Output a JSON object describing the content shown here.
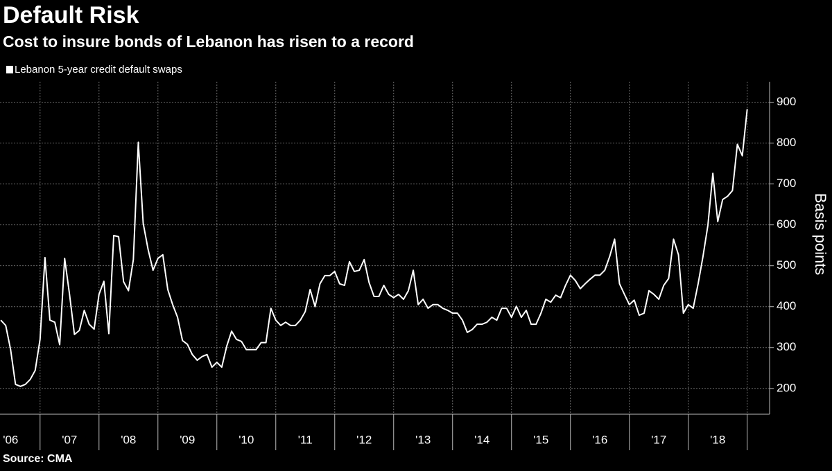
{
  "chart_data": {
    "type": "line",
    "title": "Default Risk",
    "subtitle": "Cost to insure bonds of Lebanon has risen to a record",
    "y_axis_label": "Basis points",
    "source": "Source: CMA",
    "grid": true,
    "y_axis_side": "right",
    "xlim": [
      2006.32,
      2019.38
    ],
    "ylim": [
      137,
      950
    ],
    "yticks": [
      200,
      300,
      400,
      500,
      600,
      700,
      800,
      900
    ],
    "xticks": [
      {
        "value": 2006.5,
        "label": "'06"
      },
      {
        "value": 2007.5,
        "label": "'07"
      },
      {
        "value": 2008.5,
        "label": "'08"
      },
      {
        "value": 2009.5,
        "label": "'09"
      },
      {
        "value": 2010.5,
        "label": "'10"
      },
      {
        "value": 2011.5,
        "label": "'11"
      },
      {
        "value": 2012.5,
        "label": "'12"
      },
      {
        "value": 2013.5,
        "label": "'13"
      },
      {
        "value": 2014.5,
        "label": "'14"
      },
      {
        "value": 2015.5,
        "label": "'15"
      },
      {
        "value": 2016.5,
        "label": "'16"
      },
      {
        "value": 2017.5,
        "label": "'17"
      },
      {
        "value": 2018.5,
        "label": "'18"
      }
    ],
    "x_grid": [
      2007,
      2008,
      2009,
      2010,
      2011,
      2012,
      2013,
      2014,
      2015,
      2016,
      2017,
      2018,
      2019
    ],
    "x": [
      2006.333,
      2006.417,
      2006.5,
      2006.583,
      2006.667,
      2006.75,
      2006.833,
      2006.917,
      2007.0,
      2007.083,
      2007.167,
      2007.25,
      2007.333,
      2007.417,
      2007.5,
      2007.583,
      2007.667,
      2007.75,
      2007.833,
      2007.917,
      2008.0,
      2008.083,
      2008.167,
      2008.25,
      2008.333,
      2008.417,
      2008.5,
      2008.583,
      2008.667,
      2008.75,
      2008.833,
      2008.917,
      2009.0,
      2009.083,
      2009.167,
      2009.25,
      2009.333,
      2009.417,
      2009.5,
      2009.583,
      2009.667,
      2009.75,
      2009.833,
      2009.917,
      2010.0,
      2010.083,
      2010.167,
      2010.25,
      2010.333,
      2010.417,
      2010.5,
      2010.583,
      2010.667,
      2010.75,
      2010.833,
      2010.917,
      2011.0,
      2011.083,
      2011.167,
      2011.25,
      2011.333,
      2011.417,
      2011.5,
      2011.583,
      2011.667,
      2011.75,
      2011.833,
      2011.917,
      2012.0,
      2012.083,
      2012.167,
      2012.25,
      2012.333,
      2012.417,
      2012.5,
      2012.583,
      2012.667,
      2012.75,
      2012.833,
      2012.917,
      2013.0,
      2013.083,
      2013.167,
      2013.25,
      2013.333,
      2013.417,
      2013.5,
      2013.583,
      2013.667,
      2013.75,
      2013.833,
      2013.917,
      2014.0,
      2014.083,
      2014.167,
      2014.25,
      2014.333,
      2014.417,
      2014.5,
      2014.583,
      2014.667,
      2014.75,
      2014.833,
      2014.917,
      2015.0,
      2015.083,
      2015.167,
      2015.25,
      2015.333,
      2015.417,
      2015.5,
      2015.583,
      2015.667,
      2015.75,
      2015.833,
      2015.917,
      2016.0,
      2016.083,
      2016.167,
      2016.25,
      2016.333,
      2016.417,
      2016.5,
      2016.583,
      2016.667,
      2016.75,
      2016.833,
      2016.917,
      2017.0,
      2017.083,
      2017.167,
      2017.25,
      2017.333,
      2017.417,
      2017.5,
      2017.583,
      2017.667,
      2017.75,
      2017.833,
      2017.917,
      2018.0,
      2018.083,
      2018.167,
      2018.25,
      2018.333,
      2018.417,
      2018.5,
      2018.583,
      2018.667,
      2018.75,
      2018.833,
      2018.917,
      2019.0
    ],
    "series": [
      {
        "name": "Lebanon 5-year credit default swaps",
        "color": "#ffffff",
        "values": [
          367,
          354,
          295,
          210,
          205,
          210,
          222,
          244,
          320,
          520,
          367,
          362,
          307,
          518,
          430,
          332,
          342,
          391,
          357,
          345,
          430,
          462,
          334,
          574,
          571,
          461,
          439,
          515,
          802,
          604,
          540,
          489,
          518,
          527,
          442,
          405,
          374,
          317,
          308,
          283,
          269,
          278,
          283,
          252,
          264,
          252,
          303,
          340,
          320,
          315,
          295,
          295,
          295,
          312,
          312,
          396,
          367,
          354,
          362,
          354,
          354,
          367,
          388,
          442,
          400,
          456,
          476,
          476,
          486,
          456,
          452,
          510,
          486,
          489,
          515,
          459,
          425,
          425,
          452,
          430,
          422,
          430,
          418,
          439,
          489,
          405,
          418,
          396,
          405,
          405,
          396,
          391,
          384,
          384,
          367,
          337,
          344,
          357,
          357,
          362,
          374,
          367,
          396,
          396,
          374,
          401,
          374,
          391,
          357,
          357,
          384,
          418,
          411,
          428,
          422,
          452,
          477,
          464,
          444,
          456,
          467,
          477,
          477,
          489,
          523,
          565,
          456,
          430,
          405,
          416,
          379,
          384,
          439,
          430,
          418,
          452,
          469,
          565,
          527,
          384,
          405,
          396,
          456,
          523,
          599,
          726,
          608,
          662,
          670,
          684,
          797,
          769,
          883
        ]
      }
    ]
  }
}
